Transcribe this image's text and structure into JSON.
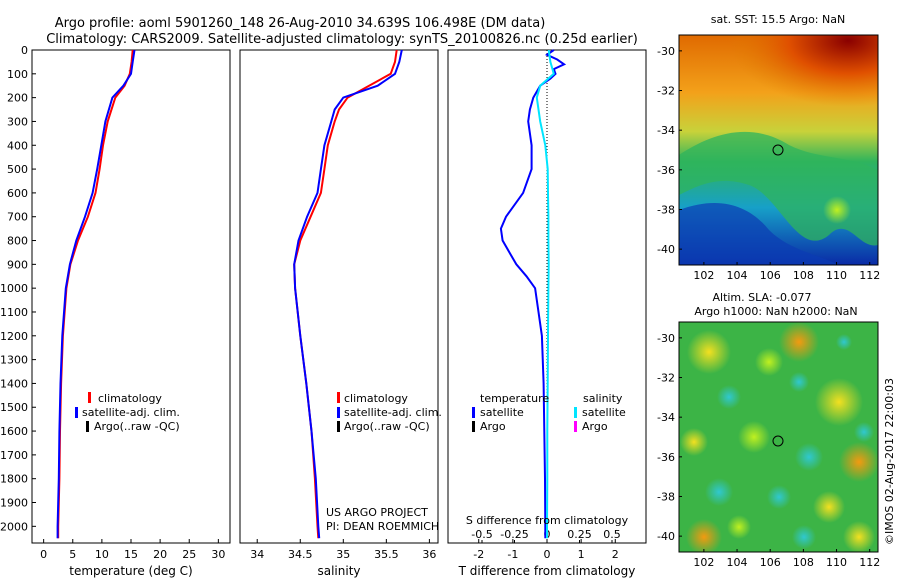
{
  "header": {
    "line1": "Argo profile: aoml 5901260_148 26-Aug-2010 34.639S 106.498E (DM data)",
    "line2": "Climatology: CARS2009. Satellite-adjusted climatology: synTS_20100826.nc (0.25d earlier)"
  },
  "footer": {
    "project": "US ARGO PROJECT",
    "pi": "PI: DEAN ROEMMICH",
    "imos": "©IMOS 02-Aug-2017 22:00:03"
  },
  "colors": {
    "climatology": "#ff0000",
    "satellite": "#0000ff",
    "argo": "#000000",
    "sal_satellite": "#00e5ff",
    "sal_argo": "#ff00ff"
  },
  "legend": {
    "climatology": "climatology",
    "satellite_adj": "satellite-adj. clim.",
    "argo": "Argo(..raw -QC)",
    "temperature": "temperature",
    "salinity": "salinity",
    "satellite": "satellite",
    "argo_short": "Argo"
  },
  "chart_data": [
    {
      "type": "line",
      "xlabel": "temperature (deg C)",
      "xlim": [
        -2,
        32
      ],
      "xticks": [
        "0",
        "5",
        "10",
        "15",
        "20",
        "25",
        "30"
      ],
      "ylim": [
        2070,
        0
      ],
      "yticks": [
        "0",
        "100",
        "200",
        "300",
        "400",
        "500",
        "600",
        "700",
        "800",
        "900",
        "1000",
        "1100",
        "1200",
        "1300",
        "1400",
        "1500",
        "1600",
        "1700",
        "1800",
        "1900",
        "2000"
      ],
      "series": [
        {
          "name": "climatology",
          "depth": [
            0,
            50,
            100,
            150,
            200,
            300,
            400,
            500,
            600,
            700,
            800,
            900,
            1000,
            1200,
            1400,
            1600,
            1800,
            2000,
            2050
          ],
          "values": [
            15.3,
            15.1,
            14.8,
            13.9,
            12.3,
            11.0,
            10.2,
            9.6,
            8.9,
            7.6,
            5.9,
            4.6,
            3.9,
            3.3,
            3.0,
            2.8,
            2.7,
            2.5,
            2.5
          ]
        },
        {
          "name": "satellite-adj. clim.",
          "depth": [
            0,
            50,
            100,
            150,
            200,
            300,
            400,
            500,
            600,
            700,
            800,
            900,
            1000,
            1200,
            1400,
            1600,
            1800,
            2000,
            2050
          ],
          "values": [
            15.6,
            15.3,
            15.0,
            13.7,
            11.8,
            10.6,
            9.9,
            9.2,
            8.4,
            7.1,
            5.6,
            4.5,
            3.8,
            3.2,
            2.9,
            2.7,
            2.6,
            2.4,
            2.4
          ]
        }
      ]
    },
    {
      "type": "line",
      "xlabel": "salinity",
      "xlim": [
        33.8,
        36.1
      ],
      "xticks": [
        "34",
        "34.5",
        "35",
        "35.5",
        "36"
      ],
      "ylim": [
        2070,
        0
      ],
      "series": [
        {
          "name": "climatology",
          "depth": [
            0,
            50,
            100,
            150,
            200,
            250,
            300,
            400,
            500,
            600,
            700,
            800,
            900,
            1000,
            1200,
            1400,
            1600,
            1800,
            2000,
            2050
          ],
          "values": [
            35.62,
            35.6,
            35.55,
            35.3,
            35.05,
            34.95,
            34.9,
            34.82,
            34.78,
            34.74,
            34.62,
            34.5,
            34.43,
            34.44,
            34.5,
            34.57,
            34.63,
            34.67,
            34.7,
            34.71
          ]
        },
        {
          "name": "satellite-adj. clim.",
          "depth": [
            0,
            50,
            100,
            150,
            200,
            250,
            300,
            400,
            500,
            600,
            700,
            800,
            900,
            1000,
            1200,
            1400,
            1600,
            1800,
            2000,
            2050
          ],
          "values": [
            35.68,
            35.65,
            35.6,
            35.4,
            35.0,
            34.9,
            34.86,
            34.78,
            34.74,
            34.7,
            34.58,
            34.48,
            34.43,
            34.44,
            34.5,
            34.57,
            34.63,
            34.68,
            34.71,
            34.72
          ]
        }
      ]
    },
    {
      "type": "line",
      "xlabel": "T difference from climatology",
      "xlabel2": "S difference from climatology",
      "xlim": [
        -2.9,
        2.9
      ],
      "xticks": [
        "-2",
        "-1",
        "0",
        "1",
        "2"
      ],
      "xticks_s": [
        "-0.5",
        "-0.25",
        "0",
        "0.25",
        "0.5"
      ],
      "ylim": [
        2070,
        0
      ],
      "series": [
        {
          "name": "temperature satellite",
          "depth": [
            0,
            20,
            40,
            60,
            80,
            100,
            120,
            150,
            200,
            250,
            300,
            350,
            400,
            500,
            600,
            700,
            750,
            800,
            850,
            900,
            950,
            1000,
            1100,
            1200,
            1400,
            1600,
            1800,
            2000,
            2050
          ],
          "values": [
            0.2,
            0.0,
            0.3,
            0.5,
            0.2,
            0.25,
            0.1,
            -0.2,
            -0.4,
            -0.5,
            -0.55,
            -0.5,
            -0.45,
            -0.45,
            -0.7,
            -1.2,
            -1.35,
            -1.3,
            -1.1,
            -0.9,
            -0.6,
            -0.35,
            -0.25,
            -0.15,
            -0.1,
            -0.08,
            -0.06,
            -0.05,
            -0.05
          ]
        },
        {
          "name": "salinity satellite",
          "depth": [
            0,
            50,
            100,
            150,
            200,
            300,
            400,
            500,
            600,
            700,
            800,
            900,
            1000,
            1200,
            1400,
            1600,
            1800,
            2000,
            2050
          ],
          "values": [
            0.05,
            0.1,
            0.2,
            -0.2,
            -0.3,
            -0.2,
            -0.05,
            0.02,
            0.03,
            0.04,
            0.04,
            0.05,
            0.04,
            0.03,
            0.02,
            0.01,
            0.01,
            0.0,
            0.0
          ]
        }
      ]
    },
    {
      "type": "heatmap",
      "title": "sat. SST: 15.5 Argo: NaN",
      "xticks": [
        "102",
        "104",
        "106",
        "108",
        "110",
        "112"
      ],
      "yticks": [
        "-30",
        "-32",
        "-34",
        "-36",
        "-38",
        "-40"
      ],
      "marker": [
        106.5,
        -34.64
      ]
    },
    {
      "type": "heatmap",
      "title": "Altim. SLA: -0.077",
      "subtitle": "Argo h1000: NaN h2000: NaN",
      "xticks": [
        "102",
        "104",
        "106",
        "108",
        "110",
        "112"
      ],
      "yticks": [
        "-30",
        "-32",
        "-34",
        "-36",
        "-38",
        "-40"
      ],
      "marker": [
        106.5,
        -34.64
      ]
    }
  ]
}
